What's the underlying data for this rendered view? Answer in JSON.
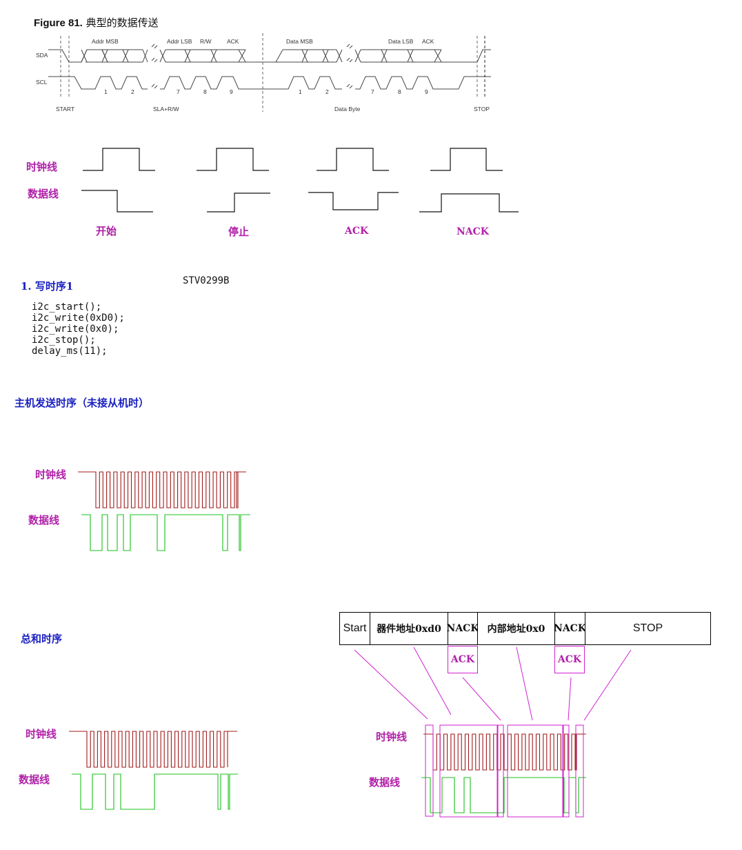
{
  "figure": {
    "number": "Figure 81.",
    "title": "典型的数据传送",
    "signals": {
      "sda": "SDA",
      "scl": "SCL"
    },
    "sda_labels": [
      "Addr MSB",
      "Addr LSB",
      "R/W",
      "ACK",
      "Data MSB",
      "Data LSB",
      "ACK"
    ],
    "scl_numbers": [
      "1",
      "2",
      "7",
      "8",
      "9",
      "1",
      "2",
      "7",
      "8",
      "9"
    ],
    "phases": [
      "START",
      "SLA+R/W",
      "Data Byte",
      "STOP"
    ]
  },
  "conditions": {
    "clock_label": "时钟线",
    "data_label": "数据线",
    "items": [
      "开始",
      "停止",
      "ACK",
      "NACK"
    ]
  },
  "write_sequence": {
    "heading": "1. 写时序1",
    "chip": "STV0299B",
    "code": [
      "i2c_start();",
      "i2c_write(0xD0);",
      "i2c_write(0x0);",
      "i2c_stop();",
      "delay_ms(11);"
    ]
  },
  "master_send": {
    "heading": "主机发送时序（未接从机时）",
    "clock_label": "时钟线",
    "data_label": "数据线"
  },
  "total": {
    "heading": "总和时序",
    "clock_label": "时钟线",
    "data_label": "数据线",
    "table": [
      "Start",
      "器件地址0xd0",
      "NACK",
      "内部地址0x0",
      "NACK",
      "STOP"
    ],
    "ack_boxes": [
      "ACK",
      "ACK"
    ],
    "right_clock_label": "时钟线",
    "right_data_label": "数据线"
  },
  "colors": {
    "clock_trace": "#a01818",
    "data_trace": "#18c018",
    "annotation": "#d020d0",
    "label": "#b020a8",
    "heading": "#1a20c0"
  }
}
